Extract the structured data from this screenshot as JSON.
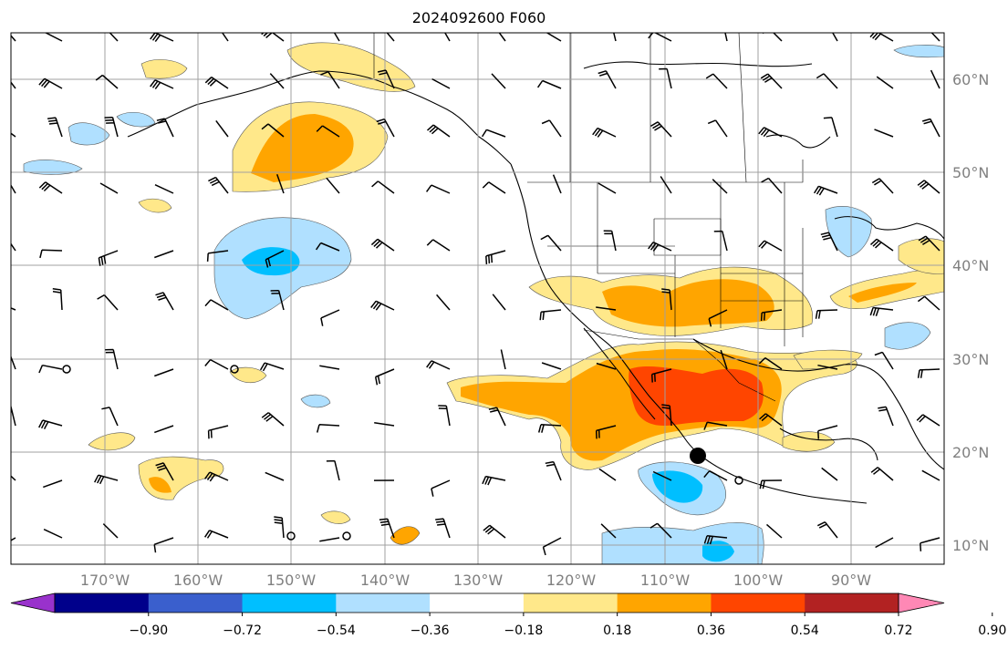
{
  "title": "2024092600 F060",
  "lat_labels": [
    "60°N",
    "50°N",
    "40°N",
    "30°N",
    "20°N",
    "10°N"
  ],
  "lon_labels": [
    "170°W",
    "160°W",
    "150°W",
    "140°W",
    "130°W",
    "120°W",
    "110°W",
    "100°W",
    "90°W"
  ],
  "colorbar": {
    "colors": [
      "#9932cc",
      "#00008b",
      "#3a5fcd",
      "#00bfff",
      "#b0e0ff",
      "#ffffff",
      "#ffe88a",
      "#ffa500",
      "#ff4500",
      "#b22222",
      "#ff88b5"
    ],
    "tick_labels": [
      "−0.90",
      "−0.72",
      "−0.54",
      "−0.36",
      "−0.18",
      "0.18",
      "0.36",
      "0.54",
      "0.72",
      "0.90"
    ]
  },
  "palette": {
    "light_blue": "#b0e0ff",
    "blue": "#00bfff",
    "light_yellow": "#ffe88a",
    "orange": "#ffa500",
    "red_orange": "#ff4500",
    "grid": "#a0a0a0",
    "coast": "#000000"
  }
}
